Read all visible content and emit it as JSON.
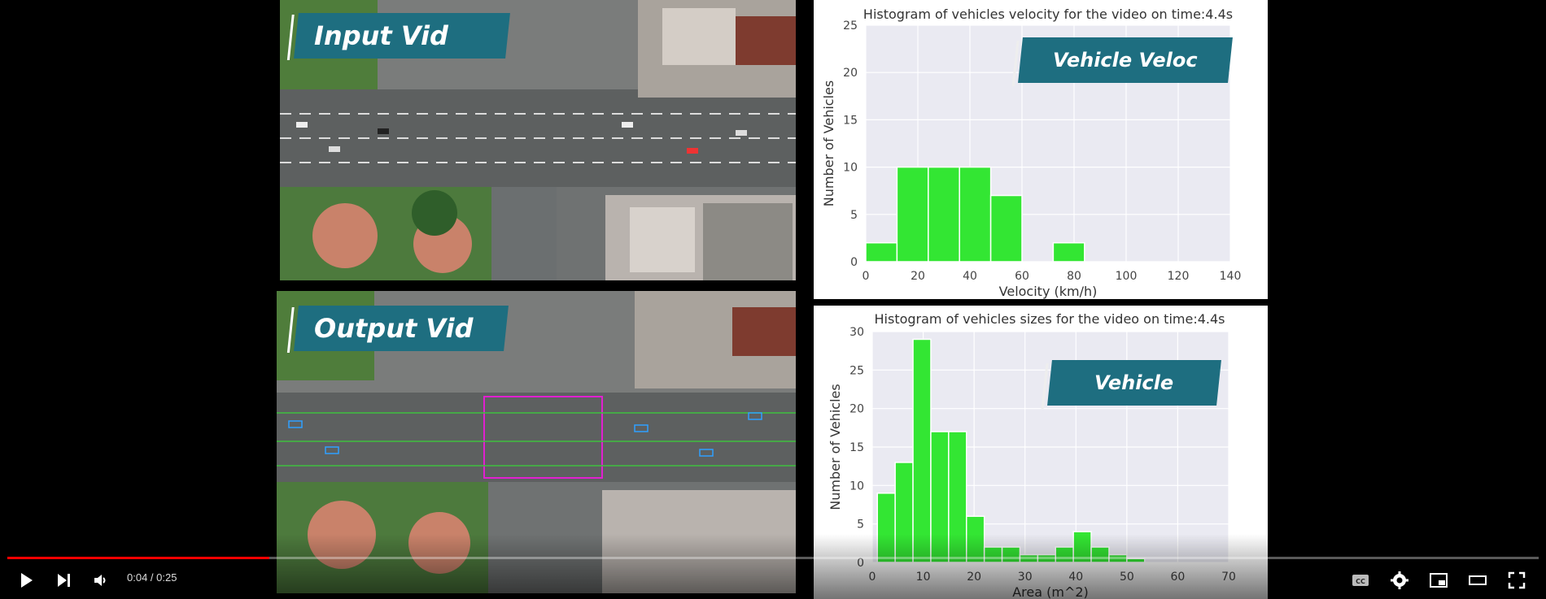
{
  "video": {
    "current_time": "0:04",
    "separator": " / ",
    "duration": "0:25",
    "progress_fraction": 0.171
  },
  "panels": {
    "input_label": "Input Vid",
    "output_label": "Output Vid"
  },
  "velocity_chart": {
    "overlay": "Vehicle Veloc"
  },
  "size_chart": {
    "overlay": "Vehicle"
  },
  "colors": {
    "bar": "#33e633",
    "bar_edge": "#ffffff",
    "plot_bg": "#eaeaf2",
    "grid": "#ffffff",
    "banner": "#1e6e80",
    "progress": "#ff0000"
  },
  "icons": {
    "play": "play-icon",
    "next": "next-icon",
    "volume": "volume-icon",
    "cc": "cc-icon",
    "settings": "gear-icon",
    "miniplayer": "miniplayer-icon",
    "theater": "theater-icon",
    "fullscreen": "fullscreen-icon"
  },
  "chart_data": [
    {
      "type": "bar",
      "title": "Histogram of vehicles velocity for the video on time:4.4s",
      "xlabel": "Velocity (km/h)",
      "ylabel": "Number of Vehicles",
      "bin_width": 12,
      "bin_starts": [
        0,
        12,
        24,
        36,
        48,
        72
      ],
      "values": [
        2,
        10,
        10,
        10,
        7,
        2
      ],
      "xlim": [
        0,
        140
      ],
      "ylim": [
        0,
        25
      ],
      "xticks": [
        0,
        20,
        40,
        60,
        80,
        100,
        120,
        140
      ],
      "yticks": [
        0,
        5,
        10,
        15,
        20,
        25
      ],
      "grid": true
    },
    {
      "type": "bar",
      "title": "Histogram of vehicles sizes for the video on time:4.4s",
      "xlabel": "Area (m^2)",
      "ylabel": "Number of Vehicles",
      "bin_width": 3.5,
      "bin_starts": [
        1,
        4.5,
        8,
        11.5,
        15,
        18.5,
        22,
        25.5,
        29,
        32.5,
        36,
        39.5,
        43,
        46.5,
        50,
        53.5
      ],
      "values": [
        9,
        13,
        29,
        17,
        17,
        6,
        2,
        2,
        1,
        1,
        2,
        4,
        2,
        1,
        0.5,
        0
      ],
      "xlim": [
        0,
        70
      ],
      "ylim": [
        0,
        30
      ],
      "xticks": [
        0,
        10,
        20,
        30,
        40,
        50,
        60,
        70
      ],
      "yticks": [
        0,
        5,
        10,
        15,
        20,
        25,
        30
      ],
      "grid": true
    }
  ]
}
